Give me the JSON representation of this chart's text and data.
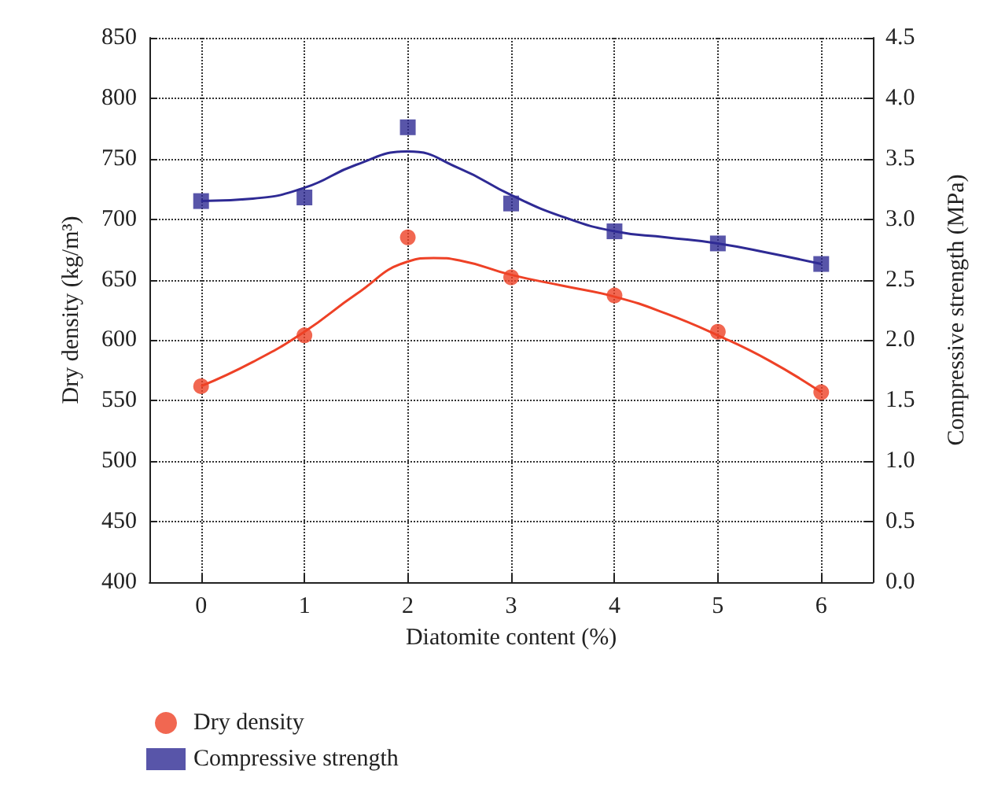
{
  "chart_data": {
    "type": "scatter",
    "xlabel": "Diatomite content (%)",
    "ylabel": "Dry density (kg/m³)",
    "y2label": "Compressive strength (MPa)",
    "x": [
      0,
      1,
      2,
      3,
      4,
      5,
      6
    ],
    "xlim": [
      -0.5,
      6.5
    ],
    "xticks": [
      0,
      1,
      2,
      3,
      4,
      5,
      6
    ],
    "ylim": [
      400,
      850
    ],
    "yticks": [
      400,
      450,
      500,
      550,
      600,
      650,
      700,
      750,
      800,
      850
    ],
    "y2lim": [
      0,
      4.5
    ],
    "y2ticks": [
      {
        "value": 0,
        "label": "0.0"
      },
      {
        "value": 0.5,
        "label": "0.5"
      },
      {
        "value": 1,
        "label": "1.0"
      },
      {
        "value": 1.5,
        "label": "1.5"
      },
      {
        "value": 2,
        "label": "2.0"
      },
      {
        "value": 2.5,
        "label": "2.5"
      },
      {
        "value": 3,
        "label": "3.0"
      },
      {
        "value": 3.5,
        "label": "3.5"
      },
      {
        "value": 4,
        "label": "4.0"
      },
      {
        "value": 4.5,
        "label": "4.5"
      }
    ],
    "grid": true,
    "legend": "bottom left",
    "series": [
      {
        "name": "Dry density",
        "color": "#ee4126",
        "marker": "circle",
        "values": [
          562,
          604,
          685,
          652,
          637,
          607,
          557
        ]
      },
      {
        "name": "Compressive strength",
        "color": "#2e2a94",
        "marker": "square",
        "axis": "y2",
        "values": [
          3.15,
          3.18,
          3.76,
          3.13,
          2.9,
          2.8,
          2.63
        ]
      },
      {
        "type": "line",
        "color": "#ee4126",
        "marker": "none",
        "x": [
          0,
          0.5,
          1,
          1.5,
          2,
          2.25,
          2.5,
          3,
          3.5,
          4,
          4.5,
          5,
          5.5,
          6
        ],
        "values": [
          562,
          582,
          607,
          638,
          665,
          668,
          666,
          654,
          645,
          636,
          622,
          604,
          583,
          557
        ]
      },
      {
        "type": "line",
        "color": "#2e2a94",
        "marker": "none",
        "axis": "y2",
        "x": [
          0,
          0.5,
          1,
          1.5,
          2,
          2.5,
          3,
          3.5,
          4,
          4.5,
          5,
          5.5,
          6
        ],
        "values": [
          3.15,
          3.17,
          3.26,
          3.45,
          3.56,
          3.42,
          3.2,
          3.02,
          2.9,
          2.85,
          2.8,
          2.72,
          2.63
        ]
      }
    ]
  }
}
